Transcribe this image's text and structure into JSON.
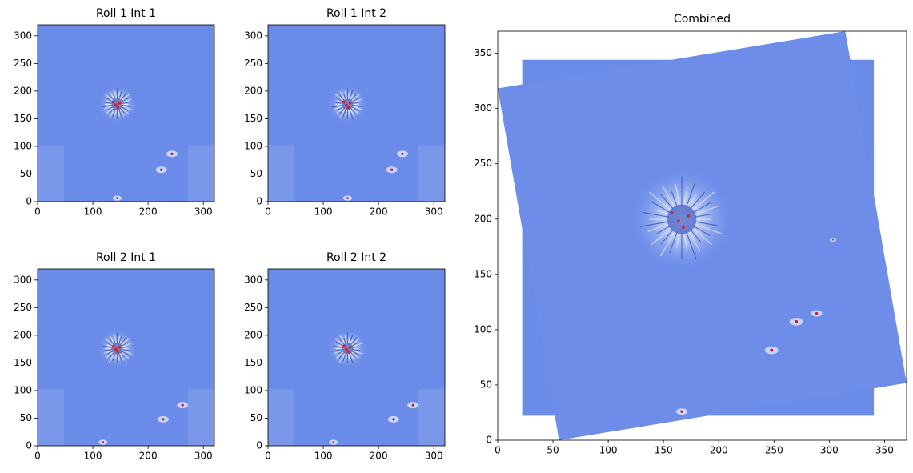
{
  "chart_data": [
    {
      "type": "image",
      "title": "Roll 1 Int 1",
      "xlim": [
        0,
        320
      ],
      "ylim": [
        0,
        320
      ],
      "xticks": [
        0,
        100,
        200,
        300
      ],
      "yticks": [
        0,
        50,
        100,
        150,
        200,
        250,
        300
      ]
    },
    {
      "type": "image",
      "title": "Roll 1 Int 2",
      "xlim": [
        0,
        320
      ],
      "ylim": [
        0,
        320
      ],
      "xticks": [
        0,
        100,
        200,
        300
      ],
      "yticks": [
        0,
        50,
        100,
        150,
        200,
        250,
        300
      ]
    },
    {
      "type": "image",
      "title": "Roll 2 Int 1",
      "xlim": [
        0,
        320
      ],
      "ylim": [
        0,
        320
      ],
      "xticks": [
        0,
        100,
        200,
        300
      ],
      "yticks": [
        0,
        50,
        100,
        150,
        200,
        250,
        300
      ]
    },
    {
      "type": "image",
      "title": "Roll 2 Int 2",
      "xlim": [
        0,
        320
      ],
      "ylim": [
        0,
        320
      ],
      "xticks": [
        0,
        100,
        200,
        300
      ],
      "yticks": [
        0,
        50,
        100,
        150,
        200,
        250,
        300
      ]
    },
    {
      "type": "mosaic",
      "title": "Combined",
      "xlim": [
        0,
        370
      ],
      "ylim": [
        0,
        370
      ],
      "xticks": [
        0,
        50,
        100,
        150,
        200,
        250,
        300,
        350
      ],
      "yticks": [
        0,
        50,
        100,
        150,
        200,
        250,
        300,
        350
      ]
    }
  ]
}
